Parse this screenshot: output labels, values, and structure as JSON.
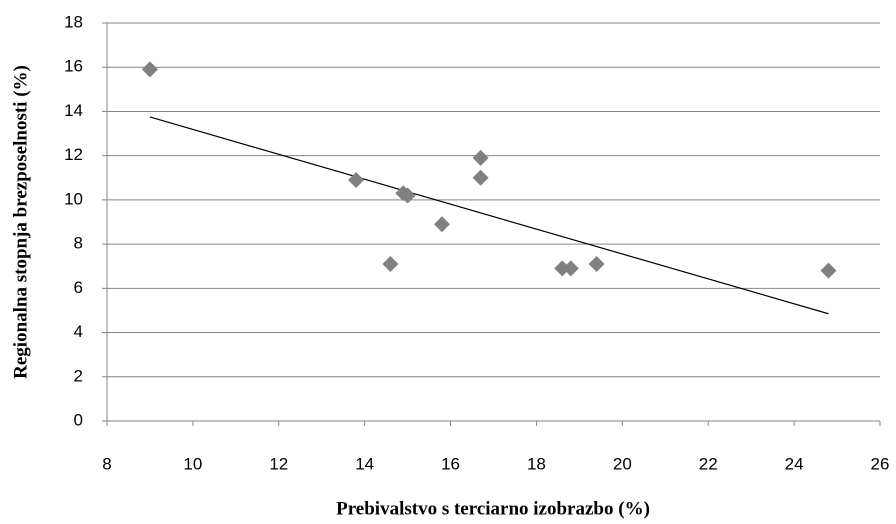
{
  "chart_data": {
    "type": "scatter",
    "xlabel": "Prebivalstvo s terciarno izobrazbo (%)",
    "ylabel": "Regionalna stopnja brezposelnosti (%)",
    "x": [
      9.0,
      13.8,
      14.6,
      14.9,
      15.0,
      15.8,
      16.7,
      16.7,
      18.6,
      18.8,
      19.4,
      24.8
    ],
    "values": [
      15.9,
      10.9,
      7.1,
      10.3,
      10.2,
      8.9,
      11.9,
      11.0,
      6.9,
      6.9,
      7.1,
      6.8
    ],
    "color": "#808080",
    "trendline": {
      "x": [
        9.0,
        24.8
      ],
      "y": [
        13.75,
        4.85
      ],
      "color": "#000000"
    },
    "xlim": [
      8,
      26
    ],
    "xticks": [
      8,
      10,
      12,
      14,
      16,
      18,
      20,
      22,
      24,
      26
    ],
    "ylim": [
      0,
      18
    ],
    "yticks": [
      0,
      2,
      4,
      6,
      8,
      10,
      12,
      14,
      16,
      18
    ],
    "grid": true
  }
}
